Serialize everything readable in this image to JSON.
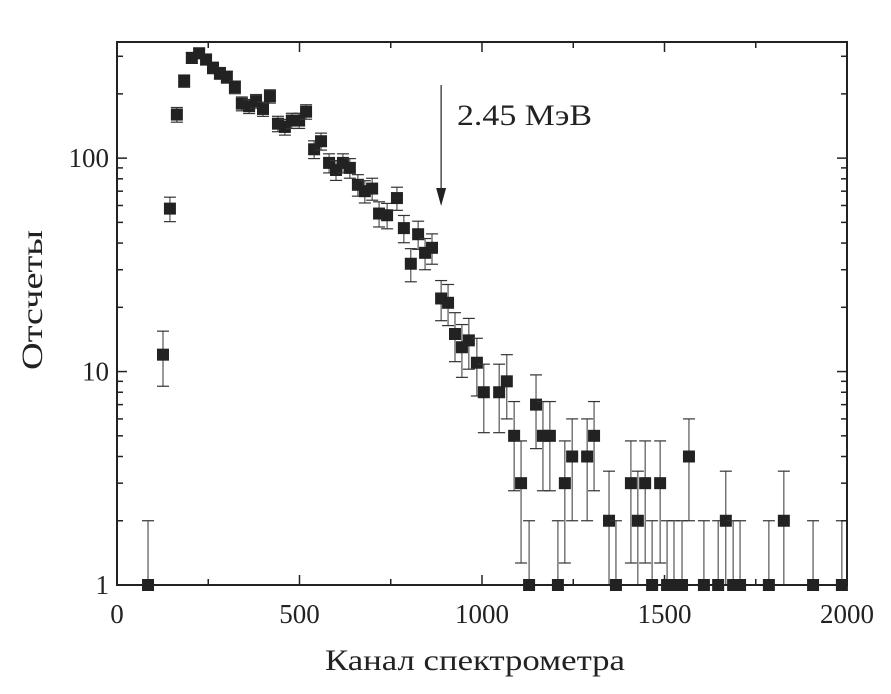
{
  "chart_data": {
    "type": "scatter",
    "title": "",
    "xlabel": "Канал спектрометра",
    "ylabel": "Отсчеты",
    "xlim": [
      0,
      2000
    ],
    "ylim": [
      1,
      350
    ],
    "yscale": "log",
    "grid": false,
    "x_ticks": [
      "0",
      "500",
      "1000",
      "1500",
      "2000"
    ],
    "y_ticks": [
      "1",
      "10",
      "100"
    ],
    "marker": "square",
    "marker_color": "#222222",
    "annotation": {
      "text": "2.45 МэВ",
      "x": 888,
      "arrow": "down"
    },
    "points": [
      [
        85,
        1
      ],
      [
        126,
        12
      ],
      [
        145,
        58
      ],
      [
        164,
        160
      ],
      [
        184,
        230
      ],
      [
        205,
        295
      ],
      [
        225,
        310
      ],
      [
        244,
        290
      ],
      [
        263,
        265
      ],
      [
        282,
        250
      ],
      [
        301,
        240
      ],
      [
        323,
        215
      ],
      [
        342,
        180
      ],
      [
        362,
        175
      ],
      [
        381,
        185
      ],
      [
        400,
        170
      ],
      [
        419,
        195
      ],
      [
        441,
        145
      ],
      [
        460,
        140
      ],
      [
        479,
        150
      ],
      [
        499,
        150
      ],
      [
        518,
        165
      ],
      [
        540,
        110
      ],
      [
        559,
        120
      ],
      [
        581,
        95
      ],
      [
        600,
        88
      ],
      [
        619,
        95
      ],
      [
        638,
        90
      ],
      [
        660,
        75
      ],
      [
        679,
        70
      ],
      [
        699,
        72
      ],
      [
        718,
        55
      ],
      [
        740,
        54
      ],
      [
        767,
        65
      ],
      [
        786,
        47
      ],
      [
        805,
        32
      ],
      [
        825,
        44
      ],
      [
        844,
        36
      ],
      [
        863,
        38
      ],
      [
        888,
        22
      ],
      [
        907,
        21
      ],
      [
        926,
        15
      ],
      [
        945,
        13
      ],
      [
        964,
        14
      ],
      [
        986,
        11
      ],
      [
        1005,
        8
      ],
      [
        1047,
        8
      ],
      [
        1068,
        9
      ],
      [
        1088,
        5
      ],
      [
        1107,
        3
      ],
      [
        1129,
        1
      ],
      [
        1148,
        7
      ],
      [
        1167,
        5
      ],
      [
        1186,
        5
      ],
      [
        1208,
        1
      ],
      [
        1227,
        3
      ],
      [
        1247,
        4
      ],
      [
        1288,
        4
      ],
      [
        1307,
        5
      ],
      [
        1348,
        2
      ],
      [
        1367,
        1
      ],
      [
        1408,
        3
      ],
      [
        1427,
        2
      ],
      [
        1447,
        3
      ],
      [
        1466,
        1
      ],
      [
        1488,
        3
      ],
      [
        1507,
        1
      ],
      [
        1526,
        1
      ],
      [
        1548,
        1
      ],
      [
        1567,
        4
      ],
      [
        1608,
        1
      ],
      [
        1647,
        1
      ],
      [
        1668,
        2
      ],
      [
        1688,
        1
      ],
      [
        1707,
        1
      ],
      [
        1786,
        1
      ],
      [
        1827,
        2
      ],
      [
        1907,
        1
      ],
      [
        1986,
        1
      ]
    ],
    "yerr": "sqrt(N)"
  }
}
